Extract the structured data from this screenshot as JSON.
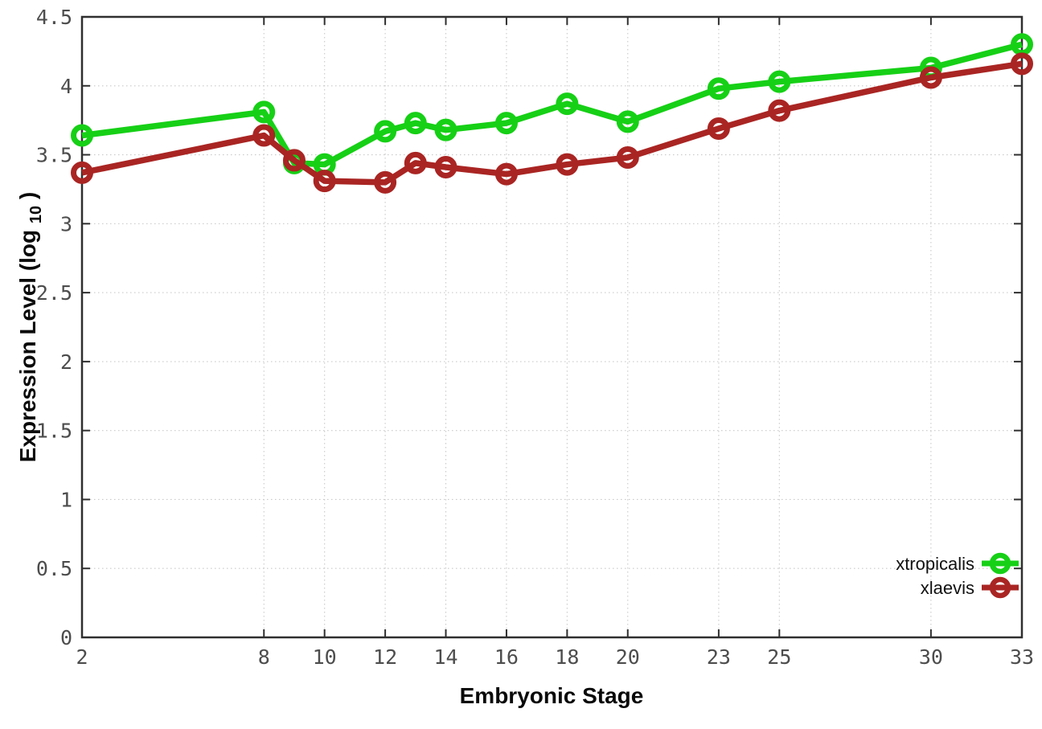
{
  "chart_data": {
    "type": "line",
    "title": "",
    "xlabel": "Embryonic Stage",
    "ylabel": "Expression Level (log10)",
    "ylabel_rich": {
      "main": "Expression Level (log",
      "sub": "10",
      "end": ")"
    },
    "x": [
      2,
      8,
      9,
      10,
      12,
      13,
      14,
      16,
      18,
      20,
      23,
      25,
      30,
      33
    ],
    "series": [
      {
        "name": "xtropicalis",
        "color": "#16d016",
        "values": [
          3.64,
          3.81,
          3.44,
          3.43,
          3.67,
          3.73,
          3.68,
          3.73,
          3.87,
          3.74,
          3.98,
          4.03,
          4.13,
          4.3
        ]
      },
      {
        "name": "xlaevis",
        "color": "#a92523",
        "values": [
          3.37,
          3.64,
          3.46,
          3.31,
          3.3,
          3.44,
          3.41,
          3.36,
          3.43,
          3.48,
          3.69,
          3.82,
          4.06,
          4.16
        ]
      }
    ],
    "xlim": [
      2,
      33
    ],
    "ylim": [
      0,
      4.5
    ],
    "xticks": [
      2,
      8,
      10,
      12,
      14,
      16,
      18,
      20,
      23,
      25,
      30,
      33
    ],
    "yticks": [
      0,
      0.5,
      1,
      1.5,
      2,
      2.5,
      3,
      3.5,
      4,
      4.5
    ],
    "grid": true,
    "grid_color": "#c9c9c9",
    "border_color": "#2f2f2f",
    "tick_label_color": "#4d4d4d",
    "background_color": "#ffffff",
    "legend_position": "bottom-right",
    "marker": "open-circle"
  }
}
